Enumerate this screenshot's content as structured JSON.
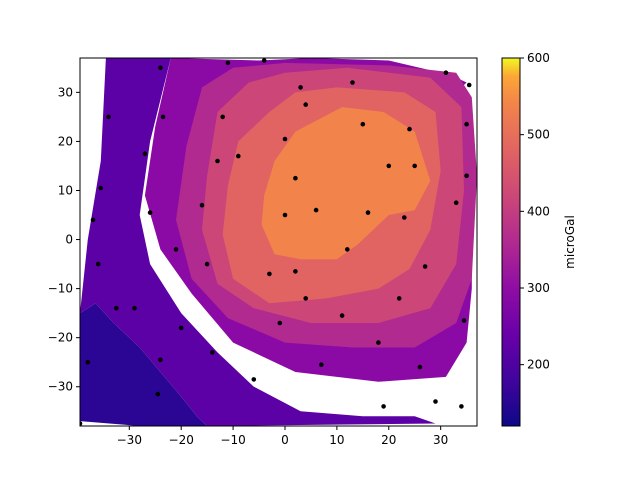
{
  "chart_data": {
    "type": "contour",
    "title": "",
    "xlabel": "",
    "ylabel": "",
    "colorbar_label": "microGal",
    "colormap": "plasma",
    "xlim": [
      -39.5,
      37
    ],
    "ylim": [
      -38,
      37
    ],
    "x_ticks": [
      -30,
      -20,
      -10,
      0,
      10,
      20,
      30
    ],
    "x_tick_labels": [
      "−30",
      "−20",
      "−10",
      "0",
      "10",
      "20",
      "30"
    ],
    "y_ticks": [
      -30,
      -20,
      -10,
      0,
      10,
      20,
      30
    ],
    "y_tick_labels": [
      "−30",
      "−20",
      "−10",
      "0",
      "10",
      "20",
      "30"
    ],
    "colorbar_range": [
      120,
      600
    ],
    "colorbar_ticks": [
      200,
      300,
      400,
      500,
      600
    ],
    "colorbar_tick_labels": [
      "200",
      "300",
      "400",
      "500",
      "600"
    ],
    "levels": [
      120,
      180,
      240,
      300,
      360,
      420,
      480,
      540,
      600
    ],
    "level_colors": [
      "#2b0594",
      "#5c01a6",
      "#8b0aa5",
      "#b02a8f",
      "#cc4778",
      "#e16462",
      "#f2844b",
      "#fca636",
      "#f8d92a"
    ],
    "regions": [
      {
        "value": 150,
        "polygon": [
          [
            -39.5,
            -37
          ],
          [
            -39.5,
            -15
          ],
          [
            -36.5,
            -13
          ],
          [
            -33,
            -17
          ],
          [
            -28,
            -22
          ],
          [
            -24,
            -27
          ],
          [
            -20,
            -32
          ],
          [
            -17,
            -36
          ],
          [
            -15,
            -38
          ],
          [
            -28,
            -38
          ]
        ]
      },
      {
        "value": 210,
        "polygon": [
          [
            -39.5,
            -15
          ],
          [
            -38,
            0
          ],
          [
            -35.5,
            16
          ],
          [
            -34.5,
            37
          ],
          [
            -22,
            37
          ],
          [
            -26,
            20
          ],
          [
            -28,
            5
          ],
          [
            -26,
            -5
          ],
          [
            -20,
            -15
          ],
          [
            -13,
            -23
          ],
          [
            -6,
            -30
          ],
          [
            3,
            -35
          ],
          [
            15,
            -36
          ],
          [
            25,
            -36
          ],
          [
            29,
            -37.5
          ],
          [
            -15,
            -38
          ],
          [
            -17,
            -36
          ],
          [
            -20,
            -32
          ],
          [
            -24,
            -27
          ],
          [
            -28,
            -22
          ],
          [
            -33,
            -17
          ],
          [
            -36.5,
            -13
          ]
        ]
      },
      {
        "value": 270,
        "polygon": [
          [
            -22,
            37
          ],
          [
            -25,
            23
          ],
          [
            -27,
            9
          ],
          [
            -24,
            -2
          ],
          [
            -18,
            -11
          ],
          [
            -10,
            -21
          ],
          [
            2,
            -27
          ],
          [
            18,
            -29
          ],
          [
            31,
            -28
          ],
          [
            35,
            -21
          ],
          [
            36,
            -10
          ],
          [
            36,
            10
          ],
          [
            35,
            28
          ],
          [
            34,
            31
          ],
          [
            35,
            32
          ],
          [
            33,
            33
          ],
          [
            28,
            34.5
          ],
          [
            20,
            36.5
          ],
          [
            5,
            37
          ],
          [
            -5,
            36.5
          ]
        ]
      },
      {
        "value": 330,
        "polygon": [
          [
            -10,
            35
          ],
          [
            -16,
            31
          ],
          [
            -19,
            19
          ],
          [
            -21,
            4
          ],
          [
            -18,
            -8
          ],
          [
            -11,
            -16
          ],
          [
            0,
            -21
          ],
          [
            13,
            -22
          ],
          [
            25,
            -22
          ],
          [
            33,
            -17
          ],
          [
            36,
            -8
          ],
          [
            37,
            13
          ],
          [
            36,
            29
          ],
          [
            33,
            34
          ],
          [
            20,
            35.5
          ],
          [
            0,
            36
          ]
        ]
      },
      {
        "value": 390,
        "polygon": [
          [
            -7,
            32
          ],
          [
            -13,
            26
          ],
          [
            -15,
            13
          ],
          [
            -16,
            2
          ],
          [
            -13,
            -9
          ],
          [
            -6,
            -14
          ],
          [
            5,
            -17
          ],
          [
            18,
            -17
          ],
          [
            28,
            -14
          ],
          [
            33,
            -5
          ],
          [
            34.5,
            10
          ],
          [
            34,
            27
          ],
          [
            28,
            33
          ],
          [
            12,
            35
          ],
          [
            0,
            34
          ]
        ]
      },
      {
        "value": 450,
        "polygon": [
          [
            -3,
            26
          ],
          [
            -9,
            20
          ],
          [
            -11,
            11
          ],
          [
            -12,
            1
          ],
          [
            -10,
            -8
          ],
          [
            -3,
            -13
          ],
          [
            8,
            -12
          ],
          [
            18,
            -10
          ],
          [
            24,
            -6
          ],
          [
            28,
            2
          ],
          [
            30,
            14
          ],
          [
            29,
            26
          ],
          [
            23,
            30
          ],
          [
            10,
            31
          ],
          [
            2,
            30
          ]
        ]
      },
      {
        "value": 510,
        "polygon": [
          [
            2,
            22
          ],
          [
            -2,
            16
          ],
          [
            -4,
            9
          ],
          [
            -4.5,
            3
          ],
          [
            -2,
            -3
          ],
          [
            3,
            -4
          ],
          [
            10,
            -4
          ],
          [
            14,
            -1
          ],
          [
            20,
            5
          ],
          [
            25,
            6
          ],
          [
            28,
            12
          ],
          [
            25,
            22
          ],
          [
            19,
            26
          ],
          [
            11,
            27
          ]
        ]
      }
    ],
    "scatter": {
      "marker_color": "#000000",
      "x": [
        -39.5,
        -38,
        -37,
        -36,
        -35.5,
        -34,
        -32.5,
        -29,
        -27,
        -26,
        -24,
        -24.5,
        -24,
        -23.5,
        -21,
        -20,
        -16,
        -15,
        -14,
        -13,
        -12,
        -11,
        -9,
        -6,
        -4,
        -3,
        -1,
        0,
        0,
        2,
        2,
        3,
        4,
        4,
        6,
        7,
        11,
        12,
        13,
        15,
        16,
        18,
        19,
        20,
        22,
        23,
        24,
        25,
        26,
        27,
        29,
        31,
        33,
        34,
        34.5,
        35,
        35,
        35.5
      ],
      "y": [
        -37.5,
        -25,
        4,
        -5,
        10.5,
        25,
        -14,
        -14,
        17.5,
        5.5,
        -24.5,
        -31.5,
        35,
        25,
        -2,
        -18,
        7,
        -5,
        -23,
        16,
        25,
        36,
        17,
        -28.5,
        36.5,
        -7,
        -17,
        5,
        20.5,
        12.5,
        -6.5,
        31,
        -12,
        27.5,
        6,
        -25.5,
        -15.5,
        -2,
        32,
        23.5,
        5.5,
        -21,
        -34,
        15,
        -12,
        4.5,
        22.5,
        15,
        -26,
        -5.5,
        -33,
        34,
        7.5,
        -34,
        -16.5,
        23.5,
        13,
        31.5
      ]
    }
  },
  "chart_area_color": "#ffffff"
}
